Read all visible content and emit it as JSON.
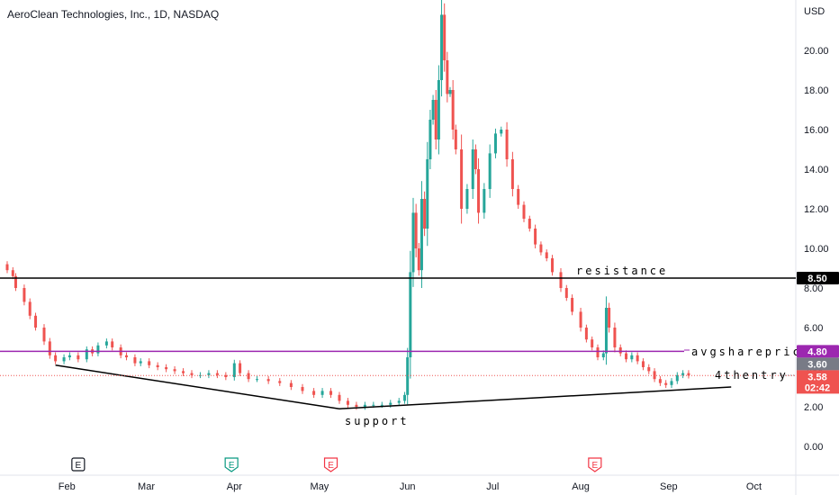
{
  "header": {
    "title": "AeroClean Technologies, Inc., 1D, NASDAQ"
  },
  "chart_data": {
    "type": "candlestick",
    "currency_label": "USD",
    "y_ticks": [
      "0.00",
      "2.00",
      "4.00",
      "6.00",
      "8.00",
      "10.00",
      "12.00",
      "14.00",
      "16.00",
      "18.00",
      "20.00"
    ],
    "ylim": [
      -0.5,
      22.5
    ],
    "x_ticks": [
      {
        "label": "Feb",
        "day": 31
      },
      {
        "label": "Mar",
        "day": 59
      },
      {
        "label": "Apr",
        "day": 90
      },
      {
        "label": "May",
        "day": 120
      },
      {
        "label": "Jun",
        "day": 151
      },
      {
        "label": "Jul",
        "day": 181
      },
      {
        "label": "Aug",
        "day": 212
      },
      {
        "label": "Sep",
        "day": 243
      },
      {
        "label": "Oct",
        "day": 273
      }
    ],
    "xlim_day": [
      10,
      283
    ],
    "up_color": "#26a69a",
    "down_color": "#ef5350",
    "close_series": [
      [
        10,
        8.9
      ],
      [
        12,
        8.6
      ],
      [
        13,
        8.0
      ],
      [
        16,
        7.3
      ],
      [
        18,
        6.6
      ],
      [
        20,
        6.0
      ],
      [
        23,
        5.3
      ],
      [
        25,
        4.6
      ],
      [
        27,
        4.3
      ],
      [
        30,
        4.5
      ],
      [
        32,
        4.6
      ],
      [
        35,
        4.4
      ],
      [
        38,
        4.9
      ],
      [
        40,
        4.7
      ],
      [
        42,
        5.1
      ],
      [
        45,
        5.3
      ],
      [
        47,
        5.0
      ],
      [
        50,
        4.6
      ],
      [
        52,
        4.5
      ],
      [
        55,
        4.2
      ],
      [
        57,
        4.3
      ],
      [
        60,
        4.1
      ],
      [
        63,
        4.0
      ],
      [
        66,
        3.9
      ],
      [
        69,
        3.8
      ],
      [
        72,
        3.7
      ],
      [
        75,
        3.6
      ],
      [
        78,
        3.6
      ],
      [
        81,
        3.7
      ],
      [
        84,
        3.6
      ],
      [
        87,
        3.5
      ],
      [
        90,
        4.2
      ],
      [
        92,
        3.7
      ],
      [
        95,
        3.4
      ],
      [
        98,
        3.4
      ],
      [
        102,
        3.3
      ],
      [
        106,
        3.2
      ],
      [
        110,
        3.0
      ],
      [
        114,
        2.8
      ],
      [
        118,
        2.6
      ],
      [
        121,
        2.8
      ],
      [
        124,
        2.6
      ],
      [
        127,
        2.3
      ],
      [
        130,
        2.1
      ],
      [
        133,
        2.0
      ],
      [
        136,
        2.1
      ],
      [
        139,
        2.1
      ],
      [
        142,
        2.1
      ],
      [
        145,
        2.2
      ],
      [
        148,
        2.3
      ],
      [
        150,
        2.6
      ],
      [
        151,
        4.5
      ],
      [
        152,
        8.8
      ],
      [
        153,
        11.8
      ],
      [
        154,
        10.0
      ],
      [
        155,
        8.9
      ],
      [
        156,
        12.5
      ],
      [
        157,
        11.0
      ],
      [
        158,
        14.5
      ],
      [
        159,
        16.5
      ],
      [
        160,
        17.5
      ],
      [
        161,
        15.5
      ],
      [
        162,
        18.5
      ],
      [
        163,
        21.8
      ],
      [
        164,
        19.5
      ],
      [
        165,
        17.8
      ],
      [
        166,
        18.0
      ],
      [
        167,
        16.0
      ],
      [
        168,
        15.0
      ],
      [
        170,
        12.0
      ],
      [
        172,
        13.0
      ],
      [
        174,
        15.0
      ],
      [
        175,
        14.0
      ],
      [
        176,
        11.8
      ],
      [
        178,
        13.0
      ],
      [
        180,
        14.8
      ],
      [
        182,
        15.8
      ],
      [
        184,
        16.0
      ],
      [
        186,
        14.5
      ],
      [
        188,
        13.0
      ],
      [
        190,
        12.2
      ],
      [
        192,
        11.5
      ],
      [
        194,
        11.0
      ],
      [
        196,
        10.2
      ],
      [
        198,
        9.8
      ],
      [
        200,
        9.5
      ],
      [
        202,
        8.8
      ],
      [
        205,
        8.0
      ],
      [
        207,
        7.5
      ],
      [
        209,
        6.8
      ],
      [
        212,
        6.0
      ],
      [
        214,
        5.4
      ],
      [
        216,
        5.0
      ],
      [
        218,
        4.5
      ],
      [
        220,
        4.7
      ],
      [
        221,
        7.0
      ],
      [
        222,
        6.0
      ],
      [
        224,
        5.0
      ],
      [
        226,
        4.7
      ],
      [
        228,
        4.4
      ],
      [
        230,
        4.6
      ],
      [
        232,
        4.3
      ],
      [
        234,
        4.0
      ],
      [
        236,
        3.8
      ],
      [
        238,
        3.4
      ],
      [
        240,
        3.2
      ],
      [
        242,
        3.1
      ],
      [
        244,
        3.3
      ],
      [
        246,
        3.6
      ],
      [
        248,
        3.7
      ],
      [
        250,
        3.58
      ]
    ],
    "annotations": [
      {
        "text": "resistance"
      },
      {
        "text": "avgshareprice"
      },
      {
        "text": "support"
      },
      {
        "text": "4thentry"
      }
    ],
    "horizontal_lines": [
      {
        "value": 8.5,
        "color": "#000000",
        "label": "8.50"
      },
      {
        "value": 4.8,
        "color": "#9c27b0",
        "label": "4.80"
      }
    ],
    "price_labels": [
      {
        "value": 3.6,
        "label": "3.60",
        "color": "#787b86"
      },
      {
        "value": 3.58,
        "label": "3.58",
        "color": "#ef5350"
      }
    ],
    "countdown": "02:42",
    "trendlines": [
      {
        "name": "lower-support-left",
        "from": [
          27,
          4.1
        ],
        "to": [
          127,
          1.9
        ]
      },
      {
        "name": "lower-support-right",
        "from": [
          127,
          1.9
        ],
        "to": [
          265,
          3.0
        ]
      }
    ],
    "events": [
      {
        "label": "E",
        "day": 35,
        "style": "dark"
      },
      {
        "label": "E",
        "day": 89,
        "style": "green"
      },
      {
        "label": "E",
        "day": 124,
        "style": "red"
      },
      {
        "label": "E",
        "day": 217,
        "style": "red"
      }
    ]
  }
}
